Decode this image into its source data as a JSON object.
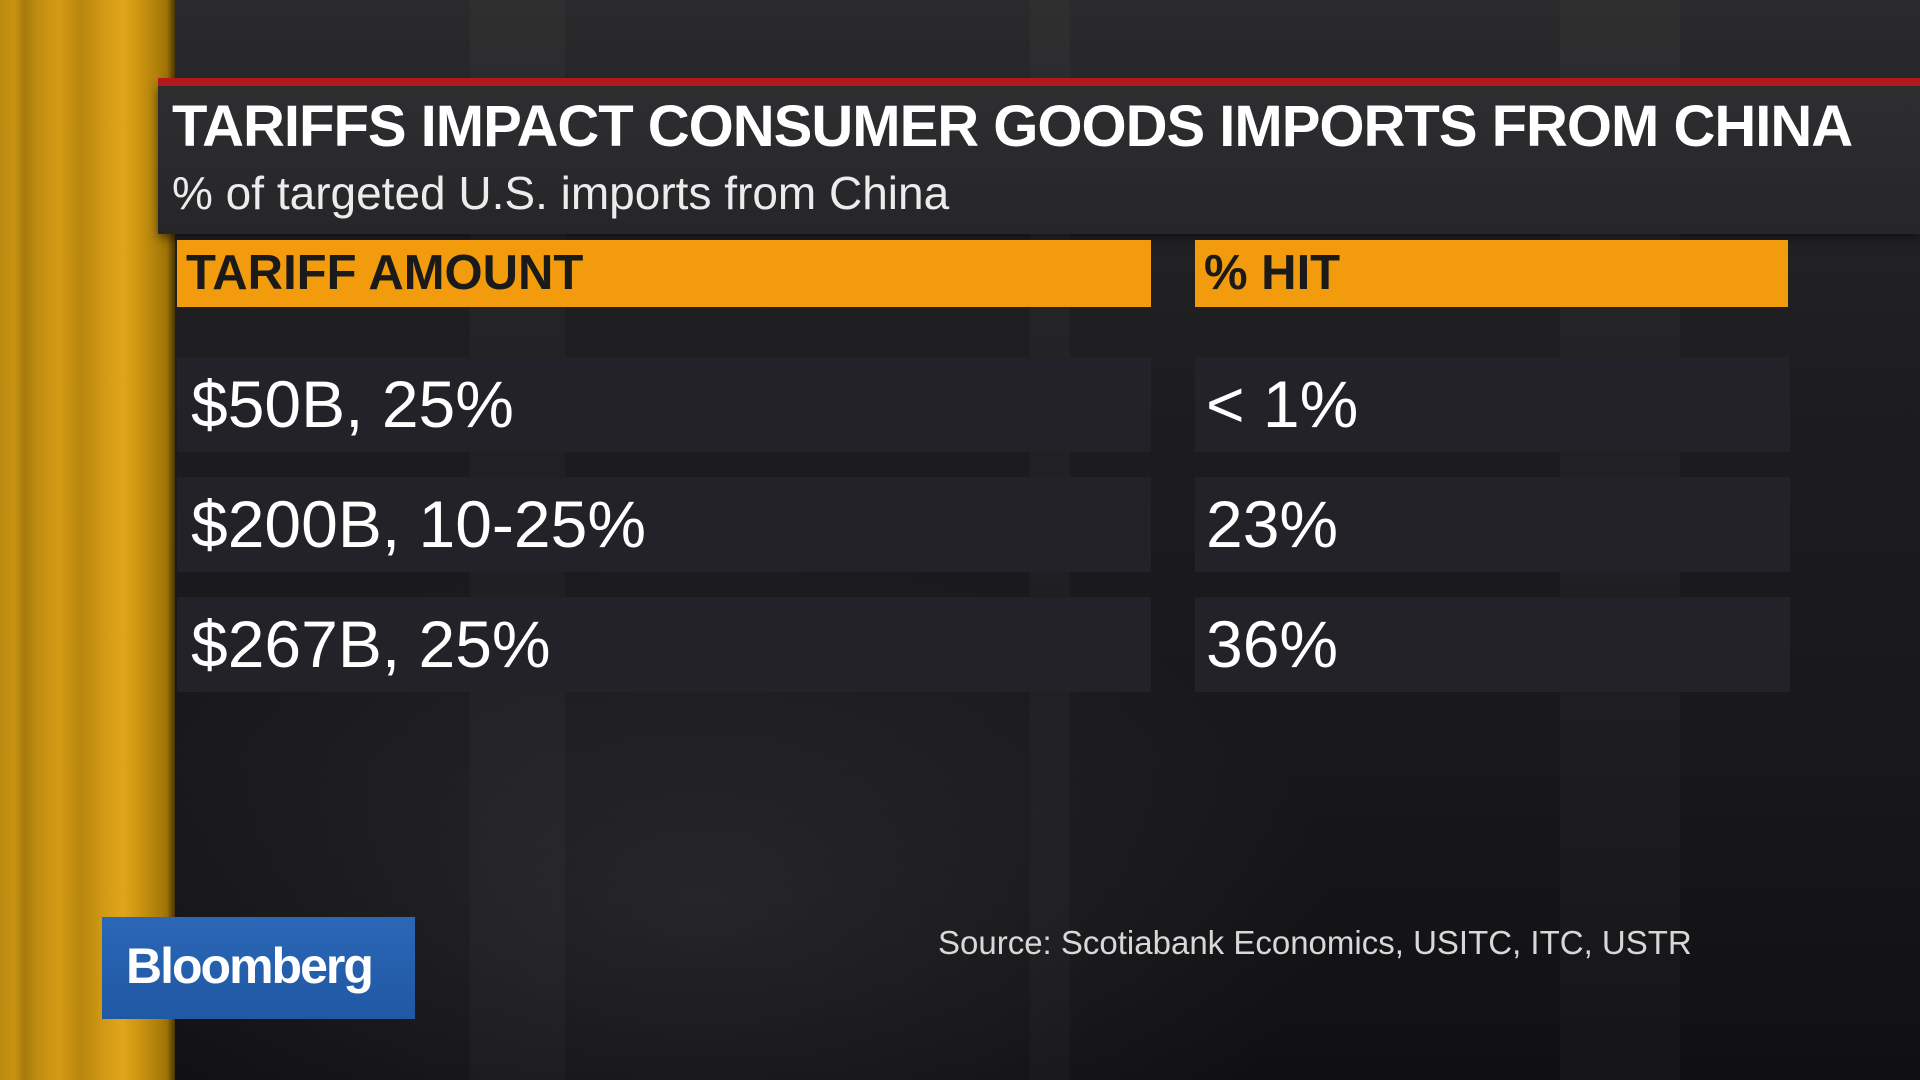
{
  "chart_data": {
    "type": "table",
    "title": "TARIFFS IMPACT CONSUMER GOODS IMPORTS FROM CHINA",
    "subtitle": "% of targeted U.S. imports from China",
    "columns": [
      "TARIFF AMOUNT",
      "% HIT"
    ],
    "rows": [
      {
        "tariff_amount": "$50B, 25%",
        "percent_hit": "< 1%"
      },
      {
        "tariff_amount": "$200B, 10-25%",
        "percent_hit": "23%"
      },
      {
        "tariff_amount": "$267B, 25%",
        "percent_hit": "36%"
      }
    ],
    "source": "Source: Scotiabank Economics, USITC, ITC, USTR"
  },
  "branding": {
    "logo_text": "Bloomberg"
  },
  "colors": {
    "header_fill": "#f29b0c",
    "title_rule": "#b3191c",
    "logo_fill": "#1f58a4",
    "row_fill": "#222228"
  }
}
